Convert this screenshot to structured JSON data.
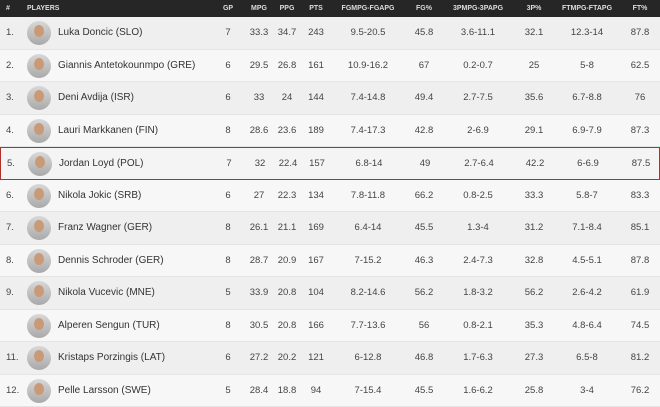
{
  "table": {
    "columns": [
      "#",
      "PLAYERS",
      "GP",
      "MPG",
      "PPG",
      "PTS",
      "FGMPG-FGAPG",
      "FG%",
      "3PMPG-3PAPG",
      "3P%",
      "FTMPG-FTAPG",
      "FT%"
    ],
    "rows": [
      [
        "1.",
        "Luka Doncic (SLO)",
        7,
        33.3,
        34.7,
        243,
        "9.5-20.5",
        45.8,
        "3.6-11.1",
        32.1,
        "12.3-14",
        87.8
      ],
      [
        "2.",
        "Giannis Antetokounmpo (GRE)",
        6,
        29.5,
        26.8,
        161,
        "10.9-16.2",
        67,
        "0.2-0.7",
        25,
        "5-8",
        62.5
      ],
      [
        "3.",
        "Deni Avdija (ISR)",
        6,
        33,
        24,
        144,
        "7.4-14.8",
        49.4,
        "2.7-7.5",
        35.6,
        "6.7-8.8",
        76.0
      ],
      [
        "4.",
        "Lauri Markkanen (FIN)",
        8,
        28.6,
        23.6,
        189,
        "7.4-17.3",
        42.8,
        "2-6.9",
        29.1,
        "6.9-7.9",
        87.3
      ],
      [
        "5.",
        "Jordan Loyd (POL)",
        7,
        32,
        22.4,
        157,
        "6.8-14",
        49,
        "2.7-6.4",
        42.2,
        "6-6.9",
        87.5
      ],
      [
        "6.",
        "Nikola Jokic (SRB)",
        6,
        27,
        22.3,
        134,
        "7.8-11.8",
        66.2,
        "0.8-2.5",
        33.3,
        "5.8-7",
        83.3
      ],
      [
        "7.",
        "Franz Wagner (GER)",
        8,
        26.1,
        21.1,
        169,
        "6.4-14",
        45.5,
        "1.3-4",
        31.2,
        "7.1-8.4",
        85.1
      ],
      [
        "8.",
        "Dennis Schroder (GER)",
        8,
        28.7,
        20.9,
        167,
        "7-15.2",
        46.3,
        "2.4-7.3",
        32.8,
        "4.5-5.1",
        87.8
      ],
      [
        "9.",
        "Nikola Vucevic (MNE)",
        5,
        33.9,
        20.8,
        104,
        "8.2-14.6",
        56.2,
        "1.8-3.2",
        56.2,
        "2.6-4.2",
        61.9
      ],
      [
        null,
        "Alperen Sengun (TUR)",
        8,
        30.5,
        20.8,
        166,
        "7.7-13.6",
        56,
        "0.8-2.1",
        35.3,
        "4.8-6.4",
        74.5
      ],
      [
        "11.",
        "Kristaps Porzingis (LAT)",
        6,
        27.2,
        20.2,
        121,
        "6-12.8",
        46.8,
        "1.7-6.3",
        27.3,
        "6.5-8",
        81.2
      ],
      [
        "12.",
        "Pelle Larsson (SWE)",
        5,
        28.4,
        18.8,
        94,
        "7-15.4",
        45.5,
        "1.6-6.2",
        25.8,
        "3-4",
        76.2
      ]
    ]
  }
}
